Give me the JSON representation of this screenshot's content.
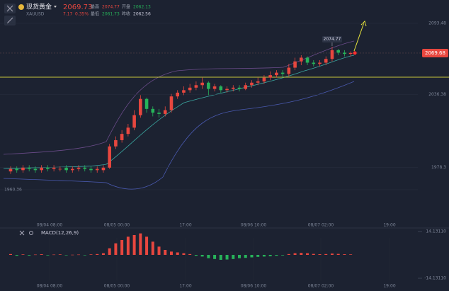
{
  "header": {
    "name": "现货黄金",
    "symbol": "XAUUSD",
    "price": "2069.73",
    "change": "7.17",
    "change_pct": "0.35%",
    "stats": [
      {
        "label": "最高",
        "value": "2074.77"
      },
      {
        "label": "开盘",
        "value": "2062.13"
      },
      {
        "label": "最低",
        "value": "2061.73"
      },
      {
        "label": "昨收",
        "value": "2062.56"
      }
    ]
  },
  "chart_data": {
    "type": "candlestick",
    "up_color": "#e8473f",
    "down_color": "#27b35a",
    "ylim": [
      1935.4,
      2107.6
    ],
    "yticks": [
      2093.48,
      2036.38,
      1978.3,
      1960.36
    ],
    "last_price": 2069.68,
    "level_line": 2050.4,
    "level_color": "#c9c63a",
    "x_labels": [
      "08/04 08:00",
      "08/05 00:00",
      "17:00",
      "08/06 10:00",
      "08/07 02:00",
      "19:00"
    ],
    "open": [
      1975,
      1977,
      1976,
      1978,
      1977,
      1976,
      1978,
      1977,
      1977,
      1978,
      1976,
      1977,
      1978,
      1977,
      1976,
      1976,
      1978,
      1995,
      2000,
      2005,
      2010,
      2020,
      2033,
      2025,
      2022,
      2021,
      2024,
      2035,
      2038,
      2040,
      2042,
      2044,
      2046,
      2041,
      2043,
      2040,
      2041,
      2042,
      2041,
      2044,
      2046,
      2047,
      2050,
      2052,
      2054,
      2053,
      2058,
      2063,
      2066,
      2062,
      2061,
      2062,
      2065,
      2072,
      2070,
      2069
    ],
    "high": [
      1979,
      1979,
      1980,
      1980,
      1979,
      1980,
      1980,
      1980,
      1979,
      1980,
      1979,
      1980,
      1980,
      1979,
      1979,
      1980,
      1997,
      2003,
      2008,
      2013,
      2024,
      2036,
      2034,
      2027,
      2025,
      2027,
      2037,
      2040,
      2043,
      2045,
      2047,
      2050,
      2047,
      2045,
      2044,
      2043,
      2044,
      2044,
      2046,
      2048,
      2050,
      2052,
      2055,
      2056,
      2056,
      2061,
      2066,
      2068,
      2067,
      2064,
      2064,
      2067,
      2074.77,
      2073,
      2072,
      2071
    ],
    "low": [
      1973,
      1974,
      1974,
      1975,
      1974,
      1974,
      1975,
      1975,
      1975,
      1974,
      1974,
      1975,
      1975,
      1974,
      1974,
      1974,
      1977,
      1993,
      1998,
      2003,
      2008,
      2018,
      2022,
      2019,
      2018,
      2019,
      2022,
      2033,
      2036,
      2038,
      2040,
      2041,
      2036,
      2039,
      2038,
      2038,
      2039,
      2039,
      2040,
      2042,
      2044,
      2045,
      2048,
      2050,
      2050,
      2051,
      2056,
      2060,
      2060,
      2059,
      2059,
      2060,
      2063,
      2068,
      2067,
      2067
    ],
    "close": [
      1977,
      1976,
      1978,
      1977,
      1976,
      1978,
      1977,
      1978,
      1977,
      1976,
      1977,
      1978,
      1977,
      1976,
      1977,
      1978,
      1995,
      2000,
      2005,
      2010,
      2020,
      2033,
      2025,
      2022,
      2021,
      2024,
      2035,
      2038,
      2040,
      2042,
      2044,
      2046,
      2041,
      2043,
      2040,
      2041,
      2042,
      2041,
      2044,
      2046,
      2047,
      2050,
      2052,
      2054,
      2053,
      2058,
      2063,
      2066,
      2062,
      2061,
      2062,
      2065,
      2072,
      2070,
      2069,
      2069.73
    ],
    "macd": {
      "label": "MACD(12,26,9)",
      "ylim": [
        -14.1311,
        14.1311
      ],
      "yticks": [
        {
          "value": 14.1311,
          "label": "14.13110"
        },
        {
          "value": -14.1311,
          "label": "-14.13110"
        }
      ],
      "values": [
        0.5,
        -0.5,
        0.3,
        -0.4,
        0.2,
        0.4,
        -0.3,
        0.2,
        0.3,
        -0.2,
        0.1,
        0.2,
        -0.1,
        0.3,
        0.5,
        1,
        4,
        7,
        9,
        11,
        12,
        13,
        11,
        8,
        5,
        3,
        2,
        1.5,
        1,
        0.5,
        -0.5,
        -1,
        -2,
        -2.5,
        -3,
        -2.8,
        -2.5,
        -2,
        -1.8,
        -1.5,
        -1.2,
        -1,
        -0.8,
        -0.5,
        -0.3,
        0.5,
        1,
        1.2,
        1,
        0.6,
        0.4,
        0.5,
        0.8,
        0.6,
        0.4,
        0.3
      ]
    }
  }
}
